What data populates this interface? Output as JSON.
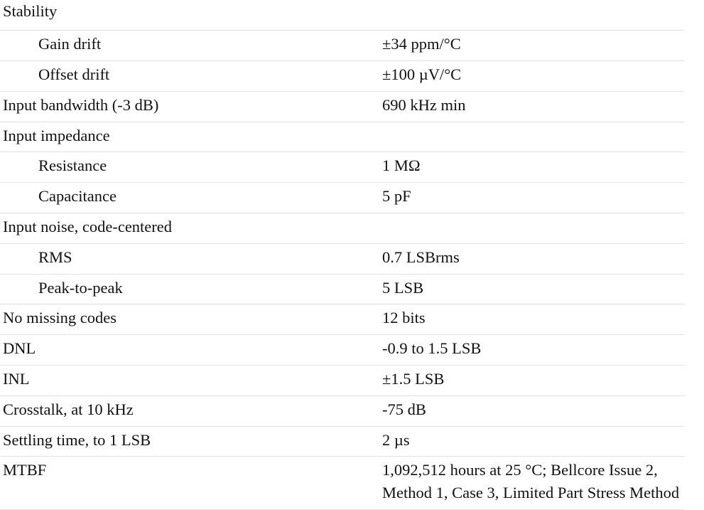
{
  "rows": [
    {
      "label": "Stability",
      "value": "",
      "indent": false
    },
    {
      "label": "Gain drift",
      "value": "±34 ppm/°C",
      "indent": true
    },
    {
      "label": "Offset drift",
      "value": "±100 µV/°C",
      "indent": true
    },
    {
      "label": "Input bandwidth (-3 dB)",
      "value": "690 kHz min",
      "indent": false
    },
    {
      "label": "Input impedance",
      "value": "",
      "indent": false
    },
    {
      "label": "Resistance",
      "value": "1 MΩ",
      "indent": true
    },
    {
      "label": "Capacitance",
      "value": "5 pF",
      "indent": true
    },
    {
      "label": "Input noise, code-centered",
      "value": "",
      "indent": false
    },
    {
      "label": "RMS",
      "value": "0.7 LSBrms",
      "indent": true
    },
    {
      "label": "Peak-to-peak",
      "value": "5 LSB",
      "indent": true
    },
    {
      "label": "No missing codes",
      "value": "12 bits",
      "indent": false
    },
    {
      "label": "DNL",
      "value": "-0.9 to 1.5 LSB",
      "indent": false
    },
    {
      "label": "INL",
      "value": "±1.5 LSB",
      "indent": false
    },
    {
      "label": "Crosstalk, at 10 kHz",
      "value": "-75 dB",
      "indent": false
    },
    {
      "label": "Settling time, to 1 LSB",
      "value": "2 µs",
      "indent": false
    },
    {
      "label": "MTBF",
      "value": "1,092,512 hours at 25 °C; Bellcore Issue 2, Method 1, Case 3, Limited Part Stress Method",
      "indent": false
    }
  ]
}
